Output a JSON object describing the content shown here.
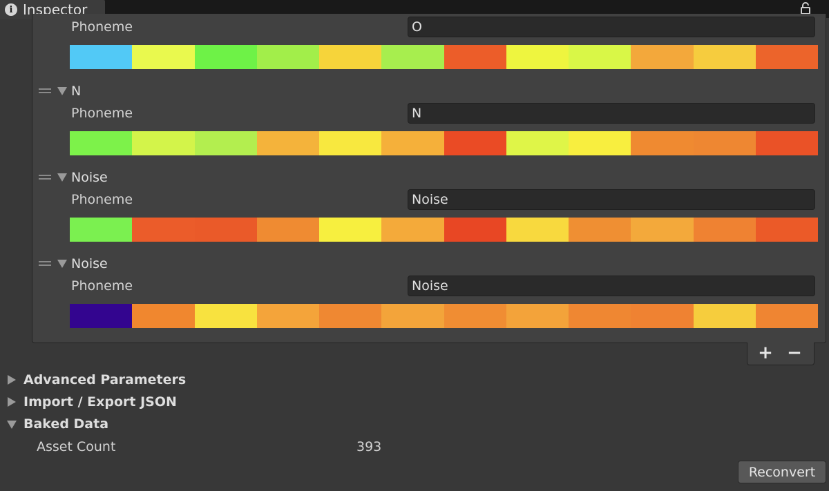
{
  "window": {
    "tab_title": "Inspector",
    "info_icon": "info-icon",
    "lock_icon": "lock-icon"
  },
  "phonemes": [
    {
      "header": "",
      "label": "Phoneme",
      "value": "O",
      "colors": [
        "#52c9f6",
        "#e9f94e",
        "#6ef247",
        "#a2ee4a",
        "#f6d43a",
        "#a7ee4e",
        "#ec5d29",
        "#eef53f",
        "#d9f747",
        "#f3a83b",
        "#f6cc3e",
        "#ec642b"
      ]
    },
    {
      "header": "N",
      "label": "Phoneme",
      "value": "N",
      "colors": [
        "#7df24a",
        "#d3f44a",
        "#b3ee4f",
        "#f4b33b",
        "#f8e83f",
        "#f5b03a",
        "#ea4b25",
        "#dff548",
        "#f8ee3f",
        "#ef8a31",
        "#ee8732",
        "#ea5227"
      ]
    },
    {
      "header": "Noise",
      "label": "Phoneme",
      "value": "Noise",
      "colors": [
        "#7bf050",
        "#eb5c2a",
        "#ea5a29",
        "#ef8b32",
        "#f7ef3f",
        "#f4aa3a",
        "#e84724",
        "#f8d93e",
        "#ef8f33",
        "#f3a93b",
        "#ef8232",
        "#eb5a28"
      ]
    },
    {
      "header": "Noise",
      "label": "Phoneme",
      "value": "Noise",
      "colors": [
        "#33058f",
        "#f0872f",
        "#f8e23f",
        "#f4a43a",
        "#ef8832",
        "#f3a43a",
        "#f08d33",
        "#f3a33a",
        "#ef8732",
        "#ef8232",
        "#f6cd3d",
        "#ef8532"
      ]
    }
  ],
  "list_footer": {
    "add_label": "+",
    "remove_label": "−"
  },
  "sections": [
    {
      "label": "Advanced Parameters",
      "expanded": false
    },
    {
      "label": "Import / Export JSON",
      "expanded": false
    },
    {
      "label": "Baked Data",
      "expanded": true
    }
  ],
  "baked": {
    "asset_count_label": "Asset Count",
    "asset_count_value": "393"
  },
  "reconvert_label": "Reconvert"
}
